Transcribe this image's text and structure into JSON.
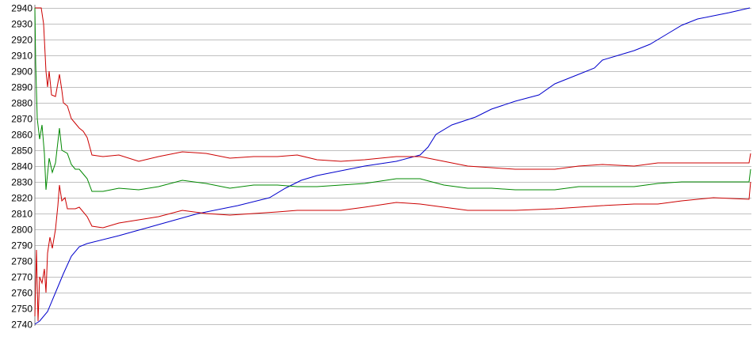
{
  "chart_data": {
    "type": "line",
    "title": "",
    "xlabel": "",
    "ylabel": "",
    "ylim": [
      2740,
      2940
    ],
    "xlim": [
      0,
      903
    ],
    "yticks": [
      2740,
      2750,
      2760,
      2770,
      2780,
      2790,
      2800,
      2810,
      2820,
      2830,
      2840,
      2850,
      2860,
      2870,
      2880,
      2890,
      2900,
      2910,
      2920,
      2930,
      2940
    ],
    "grid": true,
    "legend": "none",
    "series": [
      {
        "color": "#0000cc",
        "points": [
          [
            0,
            2740
          ],
          [
            6,
            2742
          ],
          [
            16,
            2748
          ],
          [
            26,
            2760
          ],
          [
            36,
            2772
          ],
          [
            46,
            2783
          ],
          [
            56,
            2789
          ],
          [
            66,
            2791
          ],
          [
            106,
            2796
          ],
          [
            156,
            2803
          ],
          [
            206,
            2810
          ],
          [
            256,
            2815
          ],
          [
            296,
            2820
          ],
          [
            316,
            2826
          ],
          [
            336,
            2831
          ],
          [
            356,
            2834
          ],
          [
            386,
            2837
          ],
          [
            416,
            2840
          ],
          [
            456,
            2843
          ],
          [
            486,
            2847
          ],
          [
            496,
            2852
          ],
          [
            506,
            2860
          ],
          [
            526,
            2866
          ],
          [
            556,
            2871
          ],
          [
            576,
            2876
          ],
          [
            606,
            2881
          ],
          [
            636,
            2885
          ],
          [
            656,
            2892
          ],
          [
            686,
            2898
          ],
          [
            706,
            2902
          ],
          [
            716,
            2907
          ],
          [
            736,
            2910
          ],
          [
            756,
            2913
          ],
          [
            776,
            2917
          ],
          [
            796,
            2923
          ],
          [
            816,
            2929
          ],
          [
            836,
            2933
          ],
          [
            856,
            2935
          ],
          [
            876,
            2937
          ],
          [
            902,
            2940
          ]
        ]
      },
      {
        "color": "#cc0000",
        "points": [
          [
            0,
            2940
          ],
          [
            8,
            2940
          ],
          [
            11,
            2930
          ],
          [
            14,
            2900
          ],
          [
            16,
            2890
          ],
          [
            18,
            2900
          ],
          [
            21,
            2885
          ],
          [
            26,
            2884
          ],
          [
            31,
            2898
          ],
          [
            34,
            2888
          ],
          [
            36,
            2880
          ],
          [
            41,
            2878
          ],
          [
            46,
            2870
          ],
          [
            51,
            2867
          ],
          [
            56,
            2864
          ],
          [
            61,
            2862
          ],
          [
            66,
            2858
          ],
          [
            72,
            2847
          ],
          [
            86,
            2846
          ],
          [
            106,
            2847
          ],
          [
            131,
            2843
          ],
          [
            156,
            2846
          ],
          [
            186,
            2849
          ],
          [
            216,
            2848
          ],
          [
            246,
            2845
          ],
          [
            276,
            2846
          ],
          [
            306,
            2846
          ],
          [
            331,
            2847
          ],
          [
            356,
            2844
          ],
          [
            386,
            2843
          ],
          [
            416,
            2844
          ],
          [
            456,
            2846
          ],
          [
            486,
            2846
          ],
          [
            516,
            2843
          ],
          [
            546,
            2840
          ],
          [
            576,
            2839
          ],
          [
            606,
            2838
          ],
          [
            656,
            2838
          ],
          [
            686,
            2840
          ],
          [
            716,
            2841
          ],
          [
            756,
            2840
          ],
          [
            786,
            2842
          ],
          [
            816,
            2842
          ],
          [
            856,
            2842
          ],
          [
            901,
            2842
          ],
          [
            903,
            2848
          ]
        ]
      },
      {
        "color": "#008800",
        "points": [
          [
            0,
            2940
          ],
          [
            1,
            2905
          ],
          [
            3,
            2870
          ],
          [
            6,
            2857
          ],
          [
            9,
            2866
          ],
          [
            12,
            2848
          ],
          [
            14,
            2825
          ],
          [
            18,
            2845
          ],
          [
            22,
            2836
          ],
          [
            26,
            2842
          ],
          [
            31,
            2864
          ],
          [
            34,
            2850
          ],
          [
            41,
            2848
          ],
          [
            46,
            2841
          ],
          [
            51,
            2838
          ],
          [
            56,
            2838
          ],
          [
            61,
            2835
          ],
          [
            66,
            2832
          ],
          [
            72,
            2824
          ],
          [
            86,
            2824
          ],
          [
            106,
            2826
          ],
          [
            131,
            2825
          ],
          [
            156,
            2827
          ],
          [
            186,
            2831
          ],
          [
            216,
            2829
          ],
          [
            246,
            2826
          ],
          [
            276,
            2828
          ],
          [
            306,
            2828
          ],
          [
            331,
            2827
          ],
          [
            356,
            2827
          ],
          [
            386,
            2828
          ],
          [
            416,
            2829
          ],
          [
            456,
            2832
          ],
          [
            486,
            2832
          ],
          [
            516,
            2828
          ],
          [
            546,
            2826
          ],
          [
            576,
            2826
          ],
          [
            606,
            2825
          ],
          [
            656,
            2825
          ],
          [
            686,
            2827
          ],
          [
            716,
            2827
          ],
          [
            756,
            2827
          ],
          [
            786,
            2829
          ],
          [
            816,
            2830
          ],
          [
            856,
            2830
          ],
          [
            901,
            2830
          ],
          [
            903,
            2838
          ]
        ]
      },
      {
        "color": "#cc0000",
        "points": [
          [
            0,
            2745
          ],
          [
            2,
            2787
          ],
          [
            4,
            2742
          ],
          [
            6,
            2770
          ],
          [
            9,
            2766
          ],
          [
            12,
            2775
          ],
          [
            14,
            2760
          ],
          [
            16,
            2785
          ],
          [
            19,
            2795
          ],
          [
            22,
            2788
          ],
          [
            26,
            2800
          ],
          [
            29,
            2815
          ],
          [
            31,
            2828
          ],
          [
            34,
            2818
          ],
          [
            38,
            2820
          ],
          [
            41,
            2813
          ],
          [
            51,
            2813
          ],
          [
            56,
            2814
          ],
          [
            66,
            2808
          ],
          [
            72,
            2802
          ],
          [
            86,
            2801
          ],
          [
            106,
            2804
          ],
          [
            131,
            2806
          ],
          [
            156,
            2808
          ],
          [
            186,
            2812
          ],
          [
            216,
            2810
          ],
          [
            246,
            2809
          ],
          [
            276,
            2810
          ],
          [
            306,
            2811
          ],
          [
            331,
            2812
          ],
          [
            356,
            2812
          ],
          [
            386,
            2812
          ],
          [
            416,
            2814
          ],
          [
            456,
            2817
          ],
          [
            486,
            2816
          ],
          [
            516,
            2814
          ],
          [
            546,
            2812
          ],
          [
            576,
            2812
          ],
          [
            606,
            2812
          ],
          [
            656,
            2813
          ],
          [
            686,
            2814
          ],
          [
            716,
            2815
          ],
          [
            756,
            2816
          ],
          [
            786,
            2816
          ],
          [
            816,
            2818
          ],
          [
            856,
            2820
          ],
          [
            901,
            2819
          ],
          [
            903,
            2830
          ]
        ]
      }
    ]
  }
}
